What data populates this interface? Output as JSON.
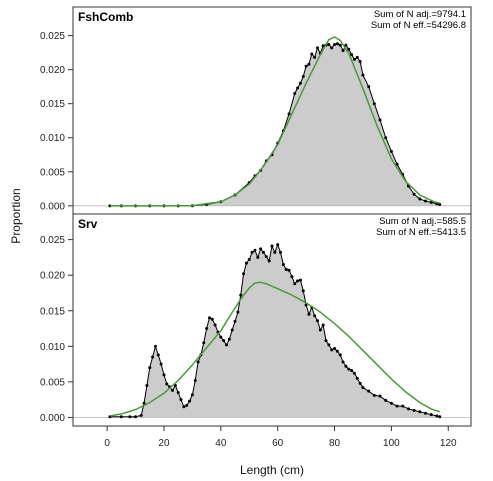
{
  "chart_data": {
    "type": "area",
    "xlabel": "Length (cm)",
    "ylabel": "Proportion",
    "xlim": [
      -12,
      128
    ],
    "x_ticks": [
      "0",
      "20",
      "40",
      "60",
      "80",
      "100",
      "120"
    ],
    "y_ticks": [
      "0.000",
      "0.005",
      "0.010",
      "0.015",
      "0.020",
      "0.025"
    ],
    "colors": {
      "observed_fill": "#cccccc",
      "observed_line": "#000000",
      "expected_line": "#4a9a3a",
      "frame": "#333333"
    },
    "panels": [
      {
        "title": "FshComb",
        "note_line1": "Sum of N adj.=9794.1",
        "note_line2": "Sum of N eff.=54296.8",
        "ylim": [
          -0.0012,
          0.0292
        ],
        "observed_x": [
          1,
          5,
          10,
          15,
          20,
          25,
          30,
          35,
          40,
          45,
          50,
          52,
          54,
          56,
          58,
          60,
          62,
          64,
          66,
          67,
          68,
          69,
          70,
          71,
          72,
          73,
          74,
          75,
          76,
          77,
          78,
          79,
          80,
          81,
          82,
          83,
          84,
          85,
          86,
          87,
          88,
          89,
          90,
          92,
          94,
          96,
          98,
          100,
          102,
          104,
          106,
          108,
          110,
          112,
          114,
          116,
          117
        ],
        "observed_y": [
          0,
          0,
          0,
          0,
          0,
          0,
          2e-05,
          0.0002,
          0.0006,
          0.0016,
          0.0034,
          0.0044,
          0.0052,
          0.0066,
          0.0075,
          0.0092,
          0.011,
          0.0135,
          0.0165,
          0.0173,
          0.018,
          0.019,
          0.0205,
          0.0208,
          0.0223,
          0.0218,
          0.0232,
          0.0224,
          0.0235,
          0.0236,
          0.0237,
          0.0232,
          0.0237,
          0.0238,
          0.0236,
          0.0228,
          0.0236,
          0.023,
          0.0222,
          0.0215,
          0.0218,
          0.0212,
          0.0192,
          0.0175,
          0.015,
          0.0126,
          0.01,
          0.008,
          0.0061,
          0.0046,
          0.0029,
          0.0017,
          0.001,
          0.0007,
          0.0005,
          0.0003,
          0.0002
        ],
        "expected_x": [
          1,
          10,
          20,
          30,
          40,
          45,
          50,
          55,
          60,
          65,
          70,
          75,
          78,
          80,
          82,
          85,
          90,
          95,
          100,
          105,
          110,
          115,
          117
        ],
        "expected_y": [
          0,
          0,
          0,
          3e-05,
          0.0006,
          0.0016,
          0.0032,
          0.0058,
          0.009,
          0.0135,
          0.018,
          0.0222,
          0.0244,
          0.0248,
          0.0243,
          0.0224,
          0.0172,
          0.0117,
          0.0069,
          0.0036,
          0.0016,
          0.0006,
          0.0004
        ]
      },
      {
        "title": "Srv",
        "note_line1": "Sum of N adj.=585.5",
        "note_line2": "Sum of N eff.=5413.5",
        "ylim": [
          -0.0012,
          0.0286
        ],
        "observed_x": [
          1,
          5,
          8,
          10,
          12,
          13,
          14,
          15,
          16,
          17,
          18,
          19,
          20,
          21,
          22,
          23,
          24,
          25,
          26,
          27,
          28,
          29,
          30,
          31,
          32,
          33,
          34,
          35,
          36,
          37,
          38,
          39,
          40,
          41,
          42,
          43,
          44,
          45,
          46,
          47,
          48,
          49,
          50,
          51,
          52,
          53,
          54,
          55,
          56,
          57,
          58,
          59,
          60,
          61,
          62,
          63,
          64,
          65,
          66,
          67,
          68,
          69,
          70,
          71,
          72,
          73,
          74,
          75,
          76,
          77,
          78,
          79,
          80,
          81,
          82,
          83,
          84,
          85,
          86,
          87,
          88,
          89,
          90,
          92,
          94,
          96,
          98,
          100,
          102,
          104,
          106,
          108,
          110,
          112,
          114,
          116,
          117
        ],
        "observed_y": [
          0.0001,
          0.0001,
          0.0001,
          0.0001,
          0.0003,
          0.002,
          0.0045,
          0.007,
          0.0085,
          0.01,
          0.0088,
          0.0075,
          0.006,
          0.0047,
          0.0043,
          0.0038,
          0.0045,
          0.0035,
          0.0025,
          0.0015,
          0.0017,
          0.0023,
          0.0032,
          0.0052,
          0.0078,
          0.0088,
          0.0105,
          0.0125,
          0.014,
          0.0138,
          0.013,
          0.012,
          0.0113,
          0.0108,
          0.0102,
          0.011,
          0.0123,
          0.0135,
          0.0148,
          0.0172,
          0.0202,
          0.0217,
          0.0222,
          0.0232,
          0.0235,
          0.0225,
          0.0237,
          0.0232,
          0.0226,
          0.022,
          0.0241,
          0.0232,
          0.0243,
          0.0232,
          0.0215,
          0.0208,
          0.0207,
          0.0198,
          0.0188,
          0.0192,
          0.0193,
          0.0178,
          0.0158,
          0.0145,
          0.0155,
          0.0143,
          0.0136,
          0.0123,
          0.013,
          0.0108,
          0.0102,
          0.0095,
          0.0097,
          0.0093,
          0.0088,
          0.0078,
          0.0072,
          0.0068,
          0.0066,
          0.0062,
          0.0055,
          0.0048,
          0.0042,
          0.0037,
          0.0031,
          0.003,
          0.0024,
          0.002,
          0.0016,
          0.0016,
          0.0012,
          0.001,
          0.0008,
          0.0006,
          0.0004,
          0.0002,
          0.0001
        ],
        "expected_x": [
          1,
          5,
          10,
          15,
          20,
          25,
          30,
          35,
          40,
          45,
          48,
          50,
          52,
          54,
          56,
          60,
          65,
          70,
          75,
          80,
          85,
          90,
          95,
          100,
          105,
          110,
          114,
          117
        ],
        "expected_y": [
          0.0002,
          0.0005,
          0.0011,
          0.0021,
          0.0034,
          0.0052,
          0.0074,
          0.0098,
          0.0122,
          0.0154,
          0.0172,
          0.0182,
          0.0189,
          0.019,
          0.0188,
          0.0181,
          0.0172,
          0.0161,
          0.0148,
          0.0132,
          0.0114,
          0.0094,
          0.0074,
          0.0054,
          0.0036,
          0.0021,
          0.0012,
          0.0008
        ]
      }
    ]
  }
}
